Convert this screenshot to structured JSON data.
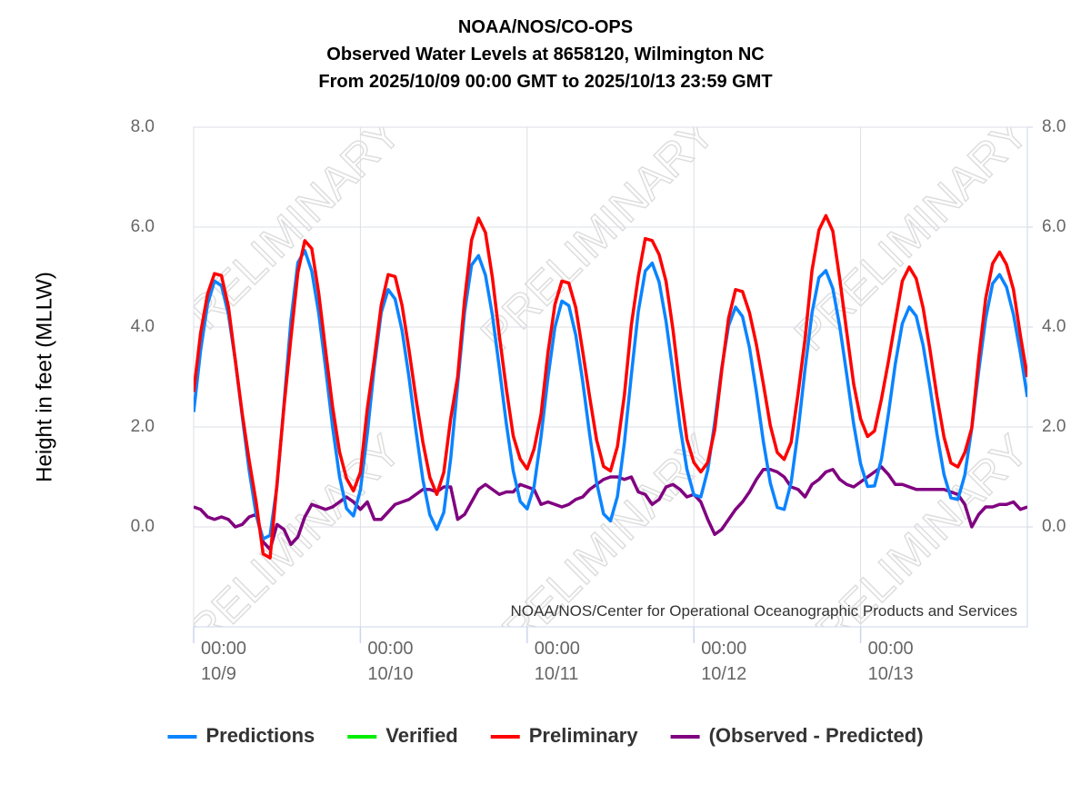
{
  "chart_data": {
    "type": "line",
    "title": [
      "NOAA/NOS/CO-OPS",
      "Observed Water Levels at 8658120, Wilmington NC",
      "From 2025/10/09 00:00 GMT to 2025/10/13 23:59 GMT"
    ],
    "y_label": "Height in feet (MLLW)",
    "watermark": "PRELIMINARY",
    "credit": "NOAA/NOS/Center for Operational Oceanographic Products and Services",
    "grid": true,
    "legend": "bottom",
    "x": [
      0,
      1,
      2,
      3,
      4,
      5,
      6,
      7,
      8,
      9,
      10,
      11,
      12,
      13,
      14,
      15,
      16,
      17,
      18,
      19,
      20,
      21,
      22,
      23,
      24,
      25,
      26,
      27,
      28,
      29,
      30,
      31,
      32,
      33,
      34,
      35,
      36,
      37,
      38,
      39,
      40,
      41,
      42,
      43,
      44,
      45,
      46,
      47,
      48,
      49,
      50,
      51,
      52,
      53,
      54,
      55,
      56,
      57,
      58,
      59,
      60,
      61,
      62,
      63,
      64,
      65,
      66,
      67,
      68,
      69,
      70,
      71,
      72,
      73,
      74,
      75,
      76,
      77,
      78,
      79,
      80,
      81,
      82,
      83,
      84,
      85,
      86,
      87,
      88,
      89,
      90,
      91,
      92,
      93,
      94,
      95,
      96,
      97,
      98,
      99,
      100,
      101,
      102,
      103,
      104,
      105,
      106,
      107,
      108,
      109,
      110,
      111,
      112,
      113,
      114,
      115,
      116,
      117,
      118,
      119,
      120
    ],
    "xlim": [
      0,
      120
    ],
    "xticks": [
      {
        "value": 0,
        "label": "00:00\n10/9"
      },
      {
        "value": 24,
        "label": "00:00\n10/10"
      },
      {
        "value": 48,
        "label": "00:00\n10/11"
      },
      {
        "value": 72,
        "label": "00:00\n10/12"
      },
      {
        "value": 96,
        "label": "00:00\n10/13"
      }
    ],
    "ylim": [
      -2,
      8
    ],
    "yticks": [
      {
        "value": 0,
        "label": "0.0"
      },
      {
        "value": 2,
        "label": "2.0"
      },
      {
        "value": 4,
        "label": "4.0"
      },
      {
        "value": 6,
        "label": "6.0"
      },
      {
        "value": 8,
        "label": "8.0"
      }
    ],
    "y2lim": [
      -2,
      8
    ],
    "y2ticks": [
      {
        "value": 0,
        "label": "0.0"
      },
      {
        "value": 2,
        "label": "2.0"
      },
      {
        "value": 4,
        "label": "4.0"
      },
      {
        "value": 6,
        "label": "6.0"
      },
      {
        "value": 8,
        "label": "8.0"
      }
    ],
    "series": [
      {
        "name": "Predictions",
        "color": "#0a84ff",
        "values": [
          2.3,
          3.53,
          4.46,
          4.92,
          4.83,
          4.26,
          3.33,
          2.21,
          1.12,
          0.24,
          -0.24,
          -0.17,
          0.82,
          2.45,
          4.13,
          5.29,
          5.53,
          5.12,
          4.28,
          3.17,
          2.0,
          1.0,
          0.37,
          0.22,
          0.74,
          1.87,
          3.2,
          4.29,
          4.75,
          4.56,
          3.93,
          2.99,
          1.92,
          0.94,
          0.24,
          -0.05,
          0.29,
          1.37,
          2.85,
          4.3,
          5.24,
          5.43,
          5.04,
          4.24,
          3.18,
          2.07,
          1.12,
          0.51,
          0.36,
          0.81,
          1.8,
          2.99,
          4.0,
          4.52,
          4.43,
          3.84,
          2.91,
          1.85,
          0.89,
          0.26,
          0.12,
          0.61,
          1.69,
          3.04,
          4.31,
          5.12,
          5.28,
          4.9,
          4.11,
          3.09,
          2.02,
          1.15,
          0.64,
          0.6,
          1.14,
          2.09,
          3.17,
          4.03,
          4.4,
          4.21,
          3.59,
          2.7,
          1.71,
          0.88,
          0.39,
          0.35,
          0.89,
          1.92,
          3.16,
          4.28,
          4.99,
          5.13,
          4.77,
          4.01,
          3.05,
          2.06,
          1.26,
          0.81,
          0.82,
          1.36,
          2.26,
          3.27,
          4.07,
          4.4,
          4.22,
          3.63,
          2.78,
          1.85,
          1.05,
          0.58,
          0.55,
          1.04,
          1.98,
          3.12,
          4.17,
          4.87,
          5.05,
          4.8,
          4.25,
          3.48,
          2.6
        ]
      },
      {
        "name": "Verified",
        "color": "#00ee00",
        "values": [
          null,
          null,
          null,
          null,
          null,
          null,
          null,
          null,
          null,
          null,
          null,
          null,
          null,
          null,
          null,
          null,
          null,
          null,
          null,
          null,
          null,
          null,
          null,
          null,
          null,
          null,
          null,
          null,
          null,
          null,
          null,
          null,
          null,
          null,
          null,
          null,
          null,
          null,
          null,
          null,
          null,
          null,
          null,
          null,
          null,
          null,
          null,
          null,
          null,
          null,
          null,
          null,
          null,
          null,
          null,
          null,
          null,
          null,
          null,
          null,
          null,
          null,
          null,
          null,
          null,
          null,
          null,
          null,
          null,
          null,
          null,
          null,
          null,
          null,
          null,
          null,
          null,
          null,
          null,
          null,
          null,
          null,
          null,
          null,
          null,
          null,
          null,
          null,
          null,
          null,
          null,
          null,
          null,
          null,
          null,
          null,
          null,
          null,
          null,
          null,
          null,
          null,
          null,
          null,
          null,
          null,
          null,
          null,
          null,
          null,
          null,
          null,
          null,
          null,
          null,
          null,
          null,
          null,
          null,
          null,
          null
        ]
      },
      {
        "name": "Preliminary",
        "color": "#ff0000",
        "values": [
          2.7,
          3.88,
          4.66,
          5.07,
          5.03,
          4.41,
          3.33,
          2.26,
          1.32,
          0.49,
          -0.54,
          -0.62,
          0.87,
          2.4,
          3.78,
          5.09,
          5.73,
          5.57,
          4.68,
          3.52,
          2.4,
          1.5,
          0.97,
          0.72,
          1.09,
          2.37,
          3.35,
          4.44,
          5.05,
          5.01,
          4.43,
          3.54,
          2.57,
          1.69,
          0.99,
          0.65,
          1.09,
          2.17,
          3.0,
          4.55,
          5.74,
          6.18,
          5.89,
          4.99,
          3.83,
          2.77,
          1.82,
          1.36,
          1.16,
          1.56,
          2.25,
          3.49,
          4.45,
          4.92,
          4.88,
          4.39,
          3.51,
          2.6,
          1.74,
          1.21,
          1.12,
          1.61,
          2.64,
          4.04,
          5.01,
          5.77,
          5.73,
          5.45,
          4.91,
          3.94,
          2.77,
          1.75,
          1.29,
          1.1,
          1.29,
          1.94,
          3.12,
          4.18,
          4.75,
          4.71,
          4.29,
          3.65,
          2.86,
          2.03,
          1.49,
          1.35,
          1.69,
          2.67,
          3.76,
          5.13,
          5.94,
          6.23,
          5.92,
          4.96,
          3.9,
          2.86,
          2.16,
          1.81,
          1.92,
          2.56,
          3.31,
          4.12,
          4.92,
          5.2,
          4.97,
          4.38,
          3.53,
          2.6,
          1.8,
          1.28,
          1.2,
          1.49,
          1.98,
          3.37,
          4.57,
          5.27,
          5.5,
          5.25,
          4.75,
          3.83,
          3.0
        ]
      },
      {
        "name": "(Observed - Predicted)",
        "color": "#800080",
        "values": [
          0.4,
          0.35,
          0.2,
          0.15,
          0.2,
          0.15,
          0.0,
          0.05,
          0.2,
          0.25,
          -0.3,
          -0.45,
          0.05,
          -0.05,
          -0.35,
          -0.2,
          0.2,
          0.45,
          0.4,
          0.35,
          0.4,
          0.5,
          0.6,
          0.5,
          0.35,
          0.5,
          0.15,
          0.15,
          0.3,
          0.45,
          0.5,
          0.55,
          0.65,
          0.75,
          0.75,
          0.7,
          0.8,
          0.8,
          0.15,
          0.25,
          0.5,
          0.75,
          0.85,
          0.75,
          0.65,
          0.7,
          0.7,
          0.85,
          0.8,
          0.75,
          0.45,
          0.5,
          0.45,
          0.4,
          0.45,
          0.55,
          0.6,
          0.75,
          0.85,
          0.95,
          1.0,
          1.0,
          0.95,
          1.0,
          0.7,
          0.65,
          0.45,
          0.55,
          0.8,
          0.85,
          0.75,
          0.6,
          0.65,
          0.5,
          0.15,
          -0.15,
          -0.05,
          0.15,
          0.35,
          0.5,
          0.7,
          0.95,
          1.15,
          1.15,
          1.1,
          1.0,
          0.8,
          0.75,
          0.6,
          0.85,
          0.95,
          1.1,
          1.15,
          0.95,
          0.85,
          0.8,
          0.9,
          1.0,
          1.1,
          1.2,
          1.05,
          0.85,
          0.85,
          0.8,
          0.75,
          0.75,
          0.75,
          0.75,
          0.75,
          0.7,
          0.65,
          0.45,
          0.0,
          0.25,
          0.4,
          0.4,
          0.45,
          0.45,
          0.5,
          0.35,
          0.4
        ]
      }
    ]
  }
}
